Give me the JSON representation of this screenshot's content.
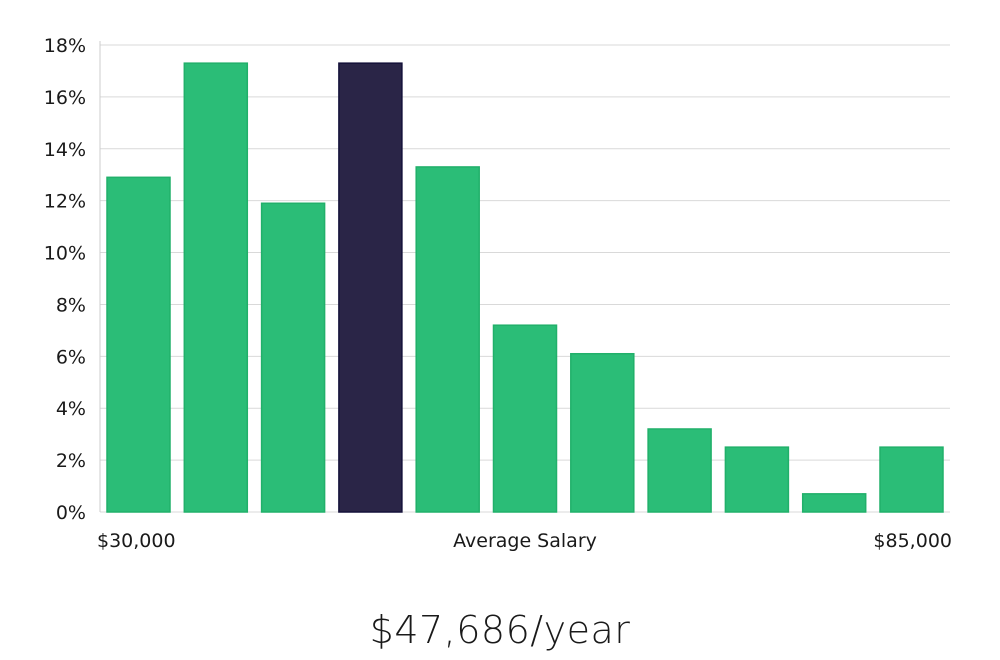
{
  "chart_data": {
    "type": "bar",
    "title": "",
    "xlabel": "Average Salary",
    "ylabel": "",
    "x_min_label": "$30,000",
    "x_max_label": "$85,000",
    "ylim": [
      0,
      18
    ],
    "y_ticks": [
      0,
      2,
      4,
      6,
      8,
      10,
      12,
      14,
      16,
      18
    ],
    "y_tick_suffix": "%",
    "grid": true,
    "values": [
      12.9,
      17.3,
      11.9,
      17.3,
      13.3,
      7.2,
      6.1,
      3.2,
      2.5,
      0.7,
      2.5
    ],
    "highlight_index": 3,
    "colors": {
      "bar": "#2bbd77",
      "bar_border": "#21b06a",
      "highlight": "#2a2547",
      "highlight_border": "#14113a",
      "grid": "#d9d9d9",
      "axis": "#cccccc"
    }
  },
  "summary": {
    "average_salary": "$47,686/year"
  }
}
